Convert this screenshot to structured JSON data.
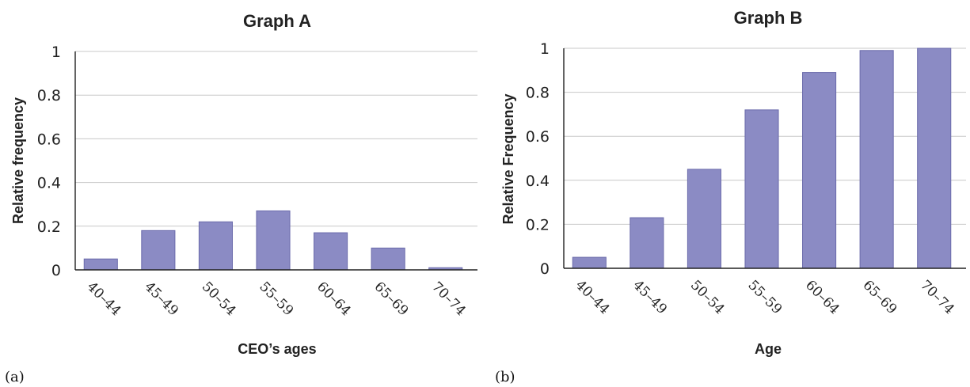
{
  "chart_data": [
    {
      "type": "bar",
      "panel_label": "(a)",
      "title": "Graph A",
      "xlabel": "CEO’s ages",
      "ylabel": "Relative frequency",
      "categories": [
        "40–44",
        "45–49",
        "50–54",
        "55–59",
        "60–64",
        "65–69",
        "70–74"
      ],
      "values": [
        0.05,
        0.18,
        0.22,
        0.27,
        0.17,
        0.1,
        0.01
      ],
      "ylim": [
        0,
        1
      ],
      "yticks": [
        "0",
        "0.2",
        "0.4",
        "0.6",
        "0.8",
        "1"
      ],
      "grid": true,
      "bar_color": "#8b8bc4",
      "bar_edge_color": "#6b6bab"
    },
    {
      "type": "bar",
      "panel_label": "(b)",
      "title": "Graph B",
      "xlabel": "Age",
      "ylabel": "Relative Frequency",
      "categories": [
        "40–44",
        "45–49",
        "50–54",
        "55–59",
        "60–64",
        "65–69",
        "70–74"
      ],
      "values": [
        0.05,
        0.23,
        0.45,
        0.72,
        0.89,
        0.99,
        1.0
      ],
      "ylim": [
        0,
        1
      ],
      "yticks": [
        "0",
        "0.2",
        "0.4",
        "0.6",
        "0.8",
        "1"
      ],
      "grid": true,
      "bar_color": "#8b8bc4",
      "bar_edge_color": "#6b6bab"
    }
  ]
}
